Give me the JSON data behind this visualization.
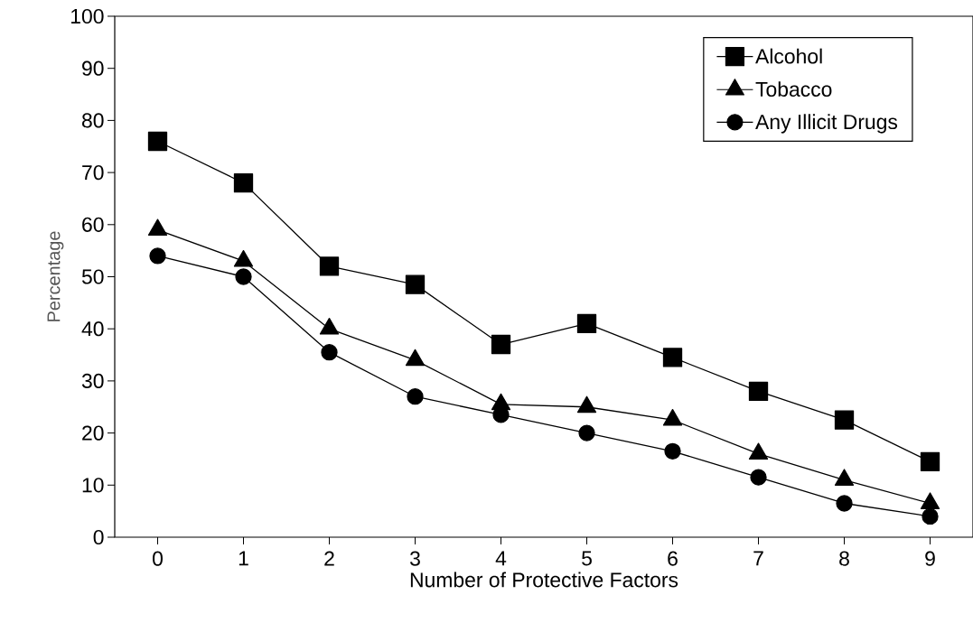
{
  "chart_data": {
    "type": "line",
    "xlabel": "Number of Protective Factors",
    "ylabel": "Percentage",
    "categories": [
      "0",
      "1",
      "2",
      "3",
      "4",
      "5",
      "6",
      "7",
      "8",
      "9"
    ],
    "ylim": [
      0,
      100
    ],
    "yticks": [
      0,
      10,
      20,
      30,
      40,
      50,
      60,
      70,
      80,
      90,
      100
    ],
    "legend": "top right",
    "line_style": "solid",
    "series": [
      {
        "name": "Alcohol",
        "color": "#000000",
        "marker": "square",
        "values": [
          76,
          68,
          52,
          48.5,
          37,
          41,
          34.5,
          28,
          22.5,
          14.5
        ]
      },
      {
        "name": "Tobacco",
        "color": "#000000",
        "marker": "triangle",
        "values": [
          59,
          53,
          40,
          34,
          25.5,
          25,
          22.5,
          16,
          11,
          6.5
        ]
      },
      {
        "name": "Any Illicit Drugs",
        "color": "#000000",
        "marker": "circle",
        "values": [
          54,
          50,
          35.5,
          27,
          23.5,
          20,
          16.5,
          11.5,
          6.5,
          4
        ]
      }
    ]
  }
}
